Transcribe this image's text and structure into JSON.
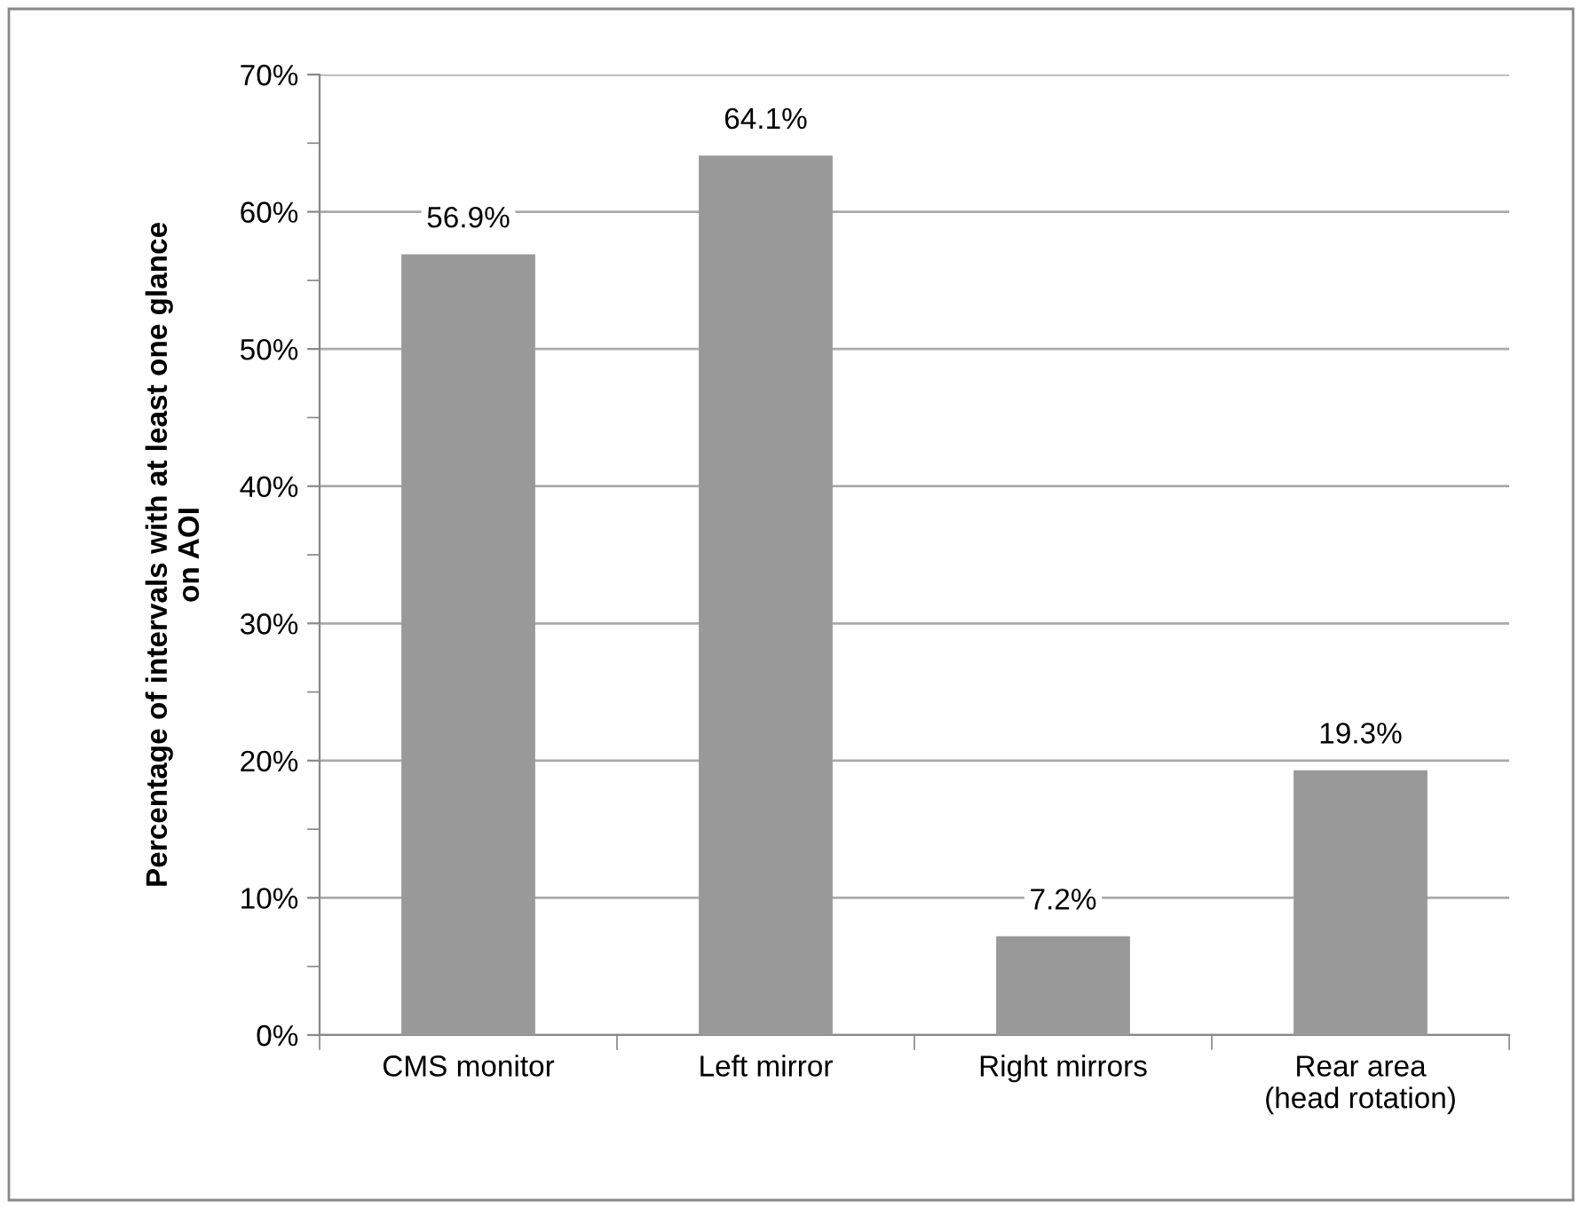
{
  "chart_data": {
    "type": "bar",
    "ylabel": "Percentage of intervals with at least one glance\non AOI",
    "categories": [
      "CMS monitor",
      "Left mirror",
      "Right mirrors",
      "Rear area\n(head rotation)"
    ],
    "values": [
      56.9,
      64.1,
      7.2,
      19.3
    ],
    "value_labels": [
      "56.9%",
      "64.1%",
      "7.2%",
      "19.3%"
    ],
    "color": "#999999",
    "ylim": [
      0,
      70
    ],
    "yticks": [
      {
        "value": 0,
        "label": "0%"
      },
      {
        "value": 10,
        "label": "10%"
      },
      {
        "value": 20,
        "label": "20%"
      },
      {
        "value": 30,
        "label": "30%"
      },
      {
        "value": 40,
        "label": "40%"
      },
      {
        "value": 50,
        "label": "50%"
      },
      {
        "value": 60,
        "label": "60%"
      },
      {
        "value": 70,
        "label": "70%"
      }
    ],
    "grid": "y",
    "legend": false
  }
}
